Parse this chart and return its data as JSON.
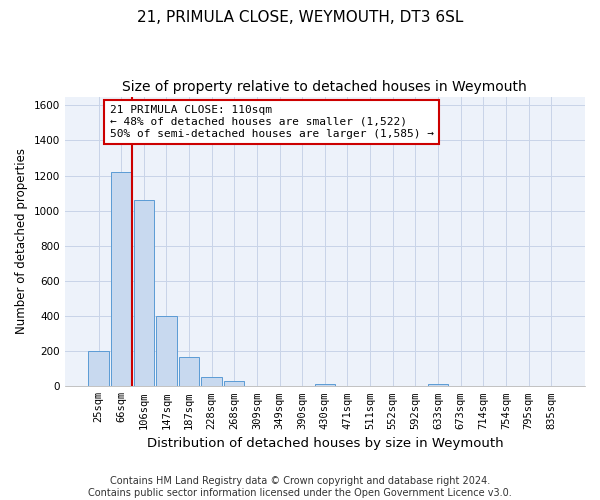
{
  "title": "21, PRIMULA CLOSE, WEYMOUTH, DT3 6SL",
  "subtitle": "Size of property relative to detached houses in Weymouth",
  "xlabel": "Distribution of detached houses by size in Weymouth",
  "ylabel": "Number of detached properties",
  "categories": [
    "25sqm",
    "66sqm",
    "106sqm",
    "147sqm",
    "187sqm",
    "228sqm",
    "268sqm",
    "309sqm",
    "349sqm",
    "390sqm",
    "430sqm",
    "471sqm",
    "511sqm",
    "552sqm",
    "592sqm",
    "633sqm",
    "673sqm",
    "714sqm",
    "754sqm",
    "795sqm",
    "835sqm"
  ],
  "values": [
    200,
    1220,
    1060,
    400,
    165,
    55,
    30,
    0,
    0,
    0,
    15,
    0,
    0,
    0,
    0,
    15,
    0,
    0,
    0,
    0,
    0
  ],
  "bar_color": "#c8d9ef",
  "bar_edge_color": "#5b9bd5",
  "bar_edge_width": 0.7,
  "grid_color": "#c8d4e8",
  "background_color": "#ffffff",
  "plot_bg_color": "#edf2fa",
  "vline_color": "#cc0000",
  "vline_x_index": 1.5,
  "annotation_text": "21 PRIMULA CLOSE: 110sqm\n← 48% of detached houses are smaller (1,522)\n50% of semi-detached houses are larger (1,585) →",
  "annotation_box_color": "#ffffff",
  "annotation_box_edge_color": "#cc0000",
  "ylim": [
    0,
    1650
  ],
  "yticks": [
    0,
    200,
    400,
    600,
    800,
    1000,
    1200,
    1400,
    1600
  ],
  "footer": "Contains HM Land Registry data © Crown copyright and database right 2024.\nContains public sector information licensed under the Open Government Licence v3.0.",
  "title_fontsize": 11,
  "subtitle_fontsize": 10,
  "xlabel_fontsize": 9.5,
  "ylabel_fontsize": 8.5,
  "footer_fontsize": 7,
  "annotation_fontsize": 8,
  "tick_fontsize": 7.5
}
